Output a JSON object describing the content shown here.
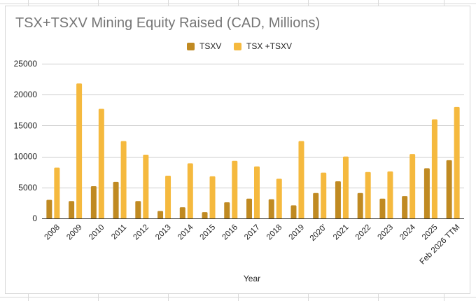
{
  "colors": {
    "tsxv": "#c08a22",
    "tsx_tsxv": "#f5b93e",
    "gridline": "#cccccc",
    "axis_text": "#222222",
    "title_text": "#757575"
  },
  "chart_data": {
    "type": "bar",
    "title": "TSX+TSXV Mining Equity Raised (CAD, Millions)",
    "xlabel": "Year",
    "ylabel": "",
    "ylim": [
      0,
      25000
    ],
    "yticks": [
      0,
      5000,
      10000,
      15000,
      20000,
      25000
    ],
    "grid": true,
    "legend_position": "top-center",
    "categories": [
      "2008",
      "2009",
      "2010",
      "2011",
      "2012",
      "2013",
      "2014",
      "2015",
      "2016",
      "2017",
      "2018",
      "2019",
      "2020'",
      "2021",
      "2022",
      "2023",
      "2024",
      "2025",
      "Feb 2026 TTM"
    ],
    "series": [
      {
        "name": "TSXV",
        "values": [
          3000,
          2800,
          5200,
          5900,
          2800,
          1200,
          1800,
          1000,
          2600,
          3200,
          3100,
          2100,
          4100,
          6000,
          4100,
          3200,
          3600,
          8100,
          9400
        ]
      },
      {
        "name": "TSX +TSXV",
        "values": [
          8200,
          21800,
          17700,
          12500,
          10300,
          6900,
          8900,
          6800,
          9300,
          8400,
          6400,
          12500,
          7400,
          10000,
          7500,
          7600,
          10400,
          16000,
          18000
        ]
      }
    ]
  }
}
